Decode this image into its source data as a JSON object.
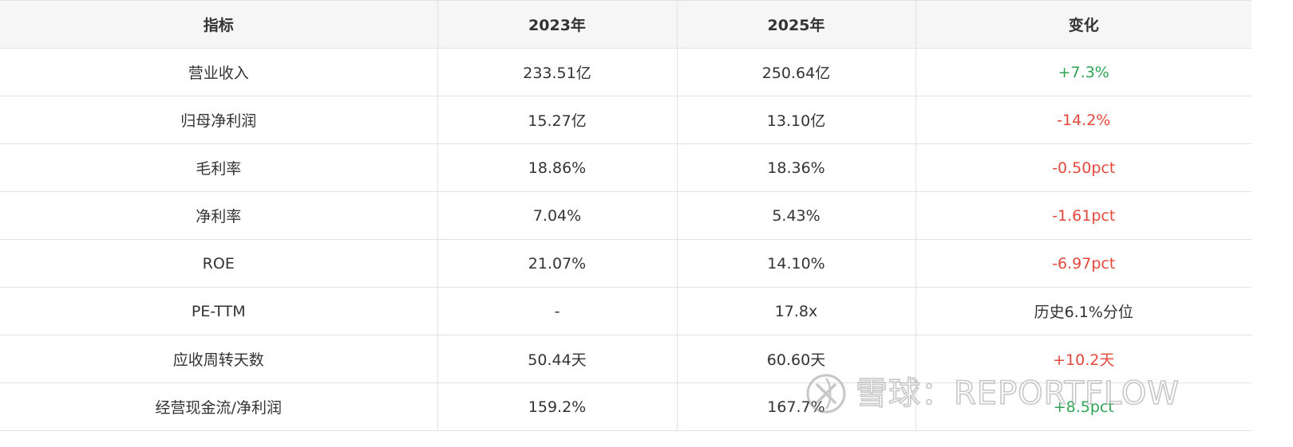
{
  "table": {
    "headers": [
      "指标",
      "2023年",
      "2025年",
      "变化"
    ],
    "rows": [
      {
        "metric": "营业收入",
        "y2023": "233.51亿",
        "y2025": "250.64亿",
        "change": "+7.3%",
        "trend": "pos"
      },
      {
        "metric": "归母净利润",
        "y2023": "15.27亿",
        "y2025": "13.10亿",
        "change": "-14.2%",
        "trend": "neg"
      },
      {
        "metric": "毛利率",
        "y2023": "18.86%",
        "y2025": "18.36%",
        "change": "-0.50pct",
        "trend": "neg"
      },
      {
        "metric": "净利率",
        "y2023": "7.04%",
        "y2025": "5.43%",
        "change": "-1.61pct",
        "trend": "neg"
      },
      {
        "metric": "ROE",
        "y2023": "21.07%",
        "y2025": "14.10%",
        "change": "-6.97pct",
        "trend": "neg"
      },
      {
        "metric": "PE-TTM",
        "y2023": "-",
        "y2025": "17.8x",
        "change": "历史6.1%分位",
        "trend": "neutral"
      },
      {
        "metric": "应收周转天数",
        "y2023": "50.44天",
        "y2025": "60.60天",
        "change": "+10.2天",
        "trend": "neg"
      },
      {
        "metric": "经营现金流/净利润",
        "y2023": "159.2%",
        "y2025": "167.7%",
        "change": "+8.5pct",
        "trend": "pos"
      }
    ]
  },
  "colors": {
    "positive": "#2fa456",
    "negative": "#e2483d",
    "header_bg": "#f6f6f6",
    "border": "#e2e2e2"
  },
  "watermark": {
    "text": "雪球：REPORTFLOW",
    "icon": "snowball-logo-icon"
  }
}
